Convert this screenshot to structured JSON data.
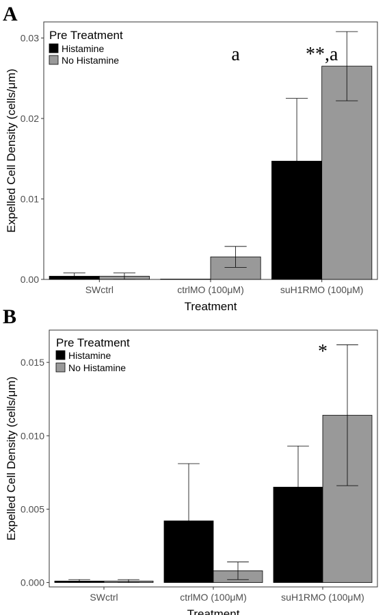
{
  "chart_data": [
    {
      "type": "bar",
      "panel_label": "A",
      "xlabel": "Treatment",
      "ylabel": "Expelled Cell Density (cells/μm)",
      "categories": [
        "SWctrl",
        "ctrlMO (100μM)",
        "suH1RMO (100μM)"
      ],
      "ylim": [
        0,
        0.032
      ],
      "yticks": [
        0.0,
        0.01,
        0.02,
        0.03
      ],
      "ytick_labels": [
        "0.00",
        "0.01",
        "0.02",
        "0.03"
      ],
      "legend": {
        "title": "Pre Treatment",
        "placement": "top-left"
      },
      "grid": false,
      "series": [
        {
          "name": "Histamine",
          "color": "#000000",
          "values": [
            0.0004,
            0.0,
            0.0147
          ],
          "error": [
            0.0004,
            0.0,
            0.0078
          ]
        },
        {
          "name": "No Histamine",
          "color": "#999999",
          "values": [
            0.0004,
            0.0028,
            0.0265
          ],
          "error": [
            0.0004,
            0.0013,
            0.0043
          ]
        }
      ],
      "annotations": [
        {
          "text": "a",
          "category": 1
        },
        {
          "text": "**,a",
          "category": 2
        }
      ]
    },
    {
      "type": "bar",
      "panel_label": "B",
      "xlabel": "Treatment",
      "ylabel": "Expelled Cell Density (cells/μm)",
      "categories": [
        "SWctrl",
        "ctrlMO (100μM)",
        "suH1RMO (100μM)"
      ],
      "ylim": [
        -0.0003,
        0.0172
      ],
      "yticks": [
        0.0,
        0.005,
        0.01,
        0.015
      ],
      "ytick_labels": [
        "0.000",
        "0.005",
        "0.010",
        "0.015"
      ],
      "legend": {
        "title": "Pre Treatment",
        "placement": "top-left"
      },
      "grid": false,
      "series": [
        {
          "name": "Histamine",
          "color": "#000000",
          "values": [
            0.0001,
            0.0042,
            0.0065
          ],
          "error": [
            0.0001,
            0.0039,
            0.0028
          ]
        },
        {
          "name": "No Histamine",
          "color": "#999999",
          "values": [
            0.0001,
            0.0008,
            0.0114
          ],
          "error": [
            0.0001,
            0.0006,
            0.0048
          ]
        }
      ],
      "annotations": [
        {
          "text": "*",
          "category": 2
        }
      ]
    }
  ]
}
